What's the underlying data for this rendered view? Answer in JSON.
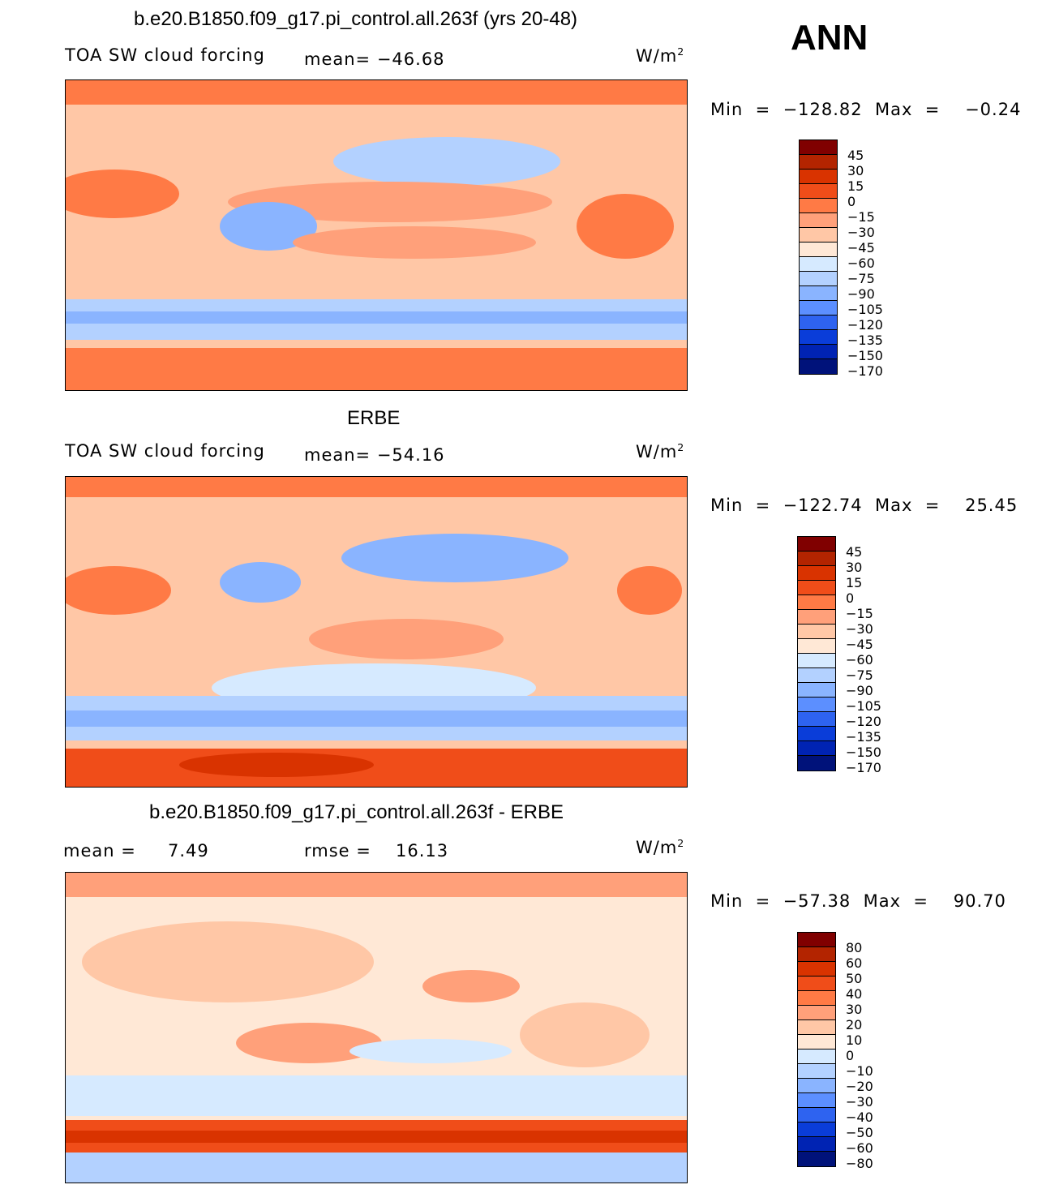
{
  "season": "ANN",
  "panels": [
    {
      "title": "b.e20.B1850.f09_g17.pi_control.all.263f (yrs 20-48)",
      "left_label": "TOA SW cloud forcing",
      "center_label": "mean= −46.68",
      "units": "W/m",
      "units_sup": "2",
      "min_label": "Min",
      "min_value": "−128.82",
      "max_label": "Max",
      "max_value": "−0.24",
      "colorbar_labels": [
        "45",
        "30",
        "15",
        "0",
        "−15",
        "−30",
        "−45",
        "−60",
        "−75",
        "−90",
        "−105",
        "−120",
        "−135",
        "−150",
        "−170"
      ]
    },
    {
      "title": "ERBE",
      "left_label": "TOA SW cloud forcing",
      "center_label": "mean= −54.16",
      "units": "W/m",
      "units_sup": "2",
      "min_label": "Min",
      "min_value": "−122.74",
      "max_label": "Max",
      "max_value": "25.45",
      "colorbar_labels": [
        "45",
        "30",
        "15",
        "0",
        "−15",
        "−30",
        "−45",
        "−60",
        "−75",
        "−90",
        "−105",
        "−120",
        "−135",
        "−150",
        "−170"
      ]
    },
    {
      "title": "b.e20.B1850.f09_g17.pi_control.all.263f - ERBE",
      "left_label": "mean =",
      "left_value": "7.49",
      "center_label": "rmse =",
      "center_value": "16.13",
      "units": "W/m",
      "units_sup": "2",
      "min_label": "Min",
      "min_value": "−57.38",
      "max_label": "Max",
      "max_value": "90.70",
      "colorbar_labels": [
        "80",
        "60",
        "50",
        "40",
        "30",
        "20",
        "10",
        "0",
        "−10",
        "−20",
        "−30",
        "−40",
        "−50",
        "−60",
        "−80"
      ]
    }
  ],
  "colors": {
    "palette": [
      "#800000",
      "#b32400",
      "#d93300",
      "#f04d19",
      "#ff7a45",
      "#ffa07a",
      "#ffc7a6",
      "#ffe8d6",
      "#d6eaff",
      "#b3d1ff",
      "#8ab4ff",
      "#5c8fff",
      "#2e63f0",
      "#0a3dd9",
      "#0023b3",
      "#00127a"
    ]
  }
}
